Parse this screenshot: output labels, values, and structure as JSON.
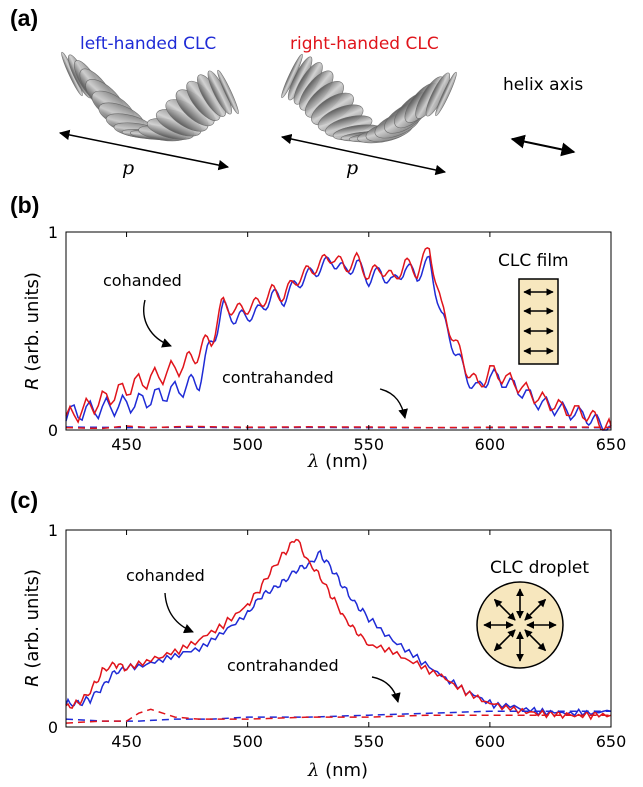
{
  "panel_a": {
    "label": "(a)",
    "left_title": "left-handed CLC",
    "right_title": "right-handed CLC",
    "pitch_left": "p",
    "pitch_right": "p",
    "axis_note": "helix axis"
  },
  "colors": {
    "blue": "#1f2bd6",
    "red": "#e0141b",
    "inset_fill": "#f7e7be"
  },
  "chart_data": [
    {
      "type": "line",
      "panel": "(b)",
      "xlabel_var": "λ",
      "xlabel_unit": " (nm)",
      "ylabel_var": "R",
      "ylabel_unit": " (arb. units)",
      "xlim": [
        425,
        650
      ],
      "ylim": [
        0,
        1
      ],
      "xticks": [
        "450",
        "500",
        "550",
        "600",
        "650"
      ],
      "yticks": [
        "0",
        "1"
      ],
      "annotations": {
        "co": "cohanded",
        "contra": "contrahanded"
      },
      "inset_label": "CLC film",
      "series": [
        {
          "color": "blue",
          "style": "solid",
          "x": [
            425,
            435,
            445,
            455,
            465,
            475,
            480,
            485,
            490,
            495,
            500,
            505,
            510,
            515,
            520,
            525,
            530,
            535,
            540,
            545,
            550,
            555,
            560,
            565,
            570,
            575,
            580,
            585,
            590,
            595,
            600,
            610,
            620,
            630,
            640,
            645,
            650
          ],
          "y": [
            0.08,
            0.1,
            0.12,
            0.14,
            0.18,
            0.22,
            0.25,
            0.44,
            0.62,
            0.56,
            0.58,
            0.6,
            0.68,
            0.66,
            0.74,
            0.78,
            0.82,
            0.86,
            0.8,
            0.84,
            0.76,
            0.8,
            0.74,
            0.82,
            0.78,
            0.85,
            0.58,
            0.42,
            0.28,
            0.2,
            0.28,
            0.22,
            0.14,
            0.1,
            0.07,
            0.03,
            0.02
          ]
        },
        {
          "color": "red",
          "style": "solid",
          "x": [
            425,
            435,
            445,
            455,
            465,
            475,
            480,
            485,
            490,
            495,
            500,
            505,
            510,
            515,
            520,
            525,
            530,
            535,
            540,
            545,
            550,
            555,
            560,
            565,
            570,
            575,
            580,
            585,
            590,
            595,
            600,
            610,
            620,
            630,
            640,
            645,
            650
          ],
          "y": [
            0.06,
            0.12,
            0.18,
            0.24,
            0.28,
            0.34,
            0.4,
            0.46,
            0.64,
            0.6,
            0.62,
            0.64,
            0.7,
            0.68,
            0.76,
            0.8,
            0.84,
            0.88,
            0.82,
            0.86,
            0.78,
            0.82,
            0.76,
            0.84,
            0.8,
            0.92,
            0.62,
            0.46,
            0.32,
            0.22,
            0.3,
            0.24,
            0.16,
            0.11,
            0.08,
            0.04,
            0.02
          ]
        },
        {
          "color": "blue",
          "style": "dashed",
          "x": [
            425,
            450,
            475,
            500,
            525,
            550,
            575,
            600,
            625,
            650
          ],
          "y": [
            0.015,
            0.012,
            0.014,
            0.012,
            0.013,
            0.012,
            0.011,
            0.012,
            0.013,
            0.012
          ]
        },
        {
          "color": "red",
          "style": "dashed",
          "x": [
            425,
            440,
            450,
            460,
            475,
            500,
            525,
            550,
            575,
            600,
            625,
            650
          ],
          "y": [
            0.012,
            0.008,
            0.02,
            0.012,
            0.018,
            0.014,
            0.016,
            0.015,
            0.012,
            0.014,
            0.016,
            0.013
          ]
        }
      ]
    },
    {
      "type": "line",
      "panel": "(c)",
      "xlabel_var": "λ",
      "xlabel_unit": " (nm)",
      "ylabel_var": "R",
      "ylabel_unit": " (arb. units)",
      "xlim": [
        425,
        650
      ],
      "ylim": [
        0,
        1
      ],
      "xticks": [
        "450",
        "500",
        "550",
        "600",
        "650"
      ],
      "yticks": [
        "0",
        "1"
      ],
      "annotations": {
        "co": "cohanded",
        "contra": "contrahanded"
      },
      "inset_label": "CLC droplet",
      "series": [
        {
          "color": "blue",
          "style": "solid",
          "x": [
            425,
            430,
            435,
            440,
            445,
            450,
            460,
            470,
            480,
            490,
            500,
            505,
            510,
            515,
            520,
            525,
            530,
            535,
            540,
            545,
            550,
            560,
            570,
            580,
            590,
            600,
            610,
            620,
            630,
            640,
            650
          ],
          "y": [
            0.12,
            0.12,
            0.14,
            0.2,
            0.28,
            0.3,
            0.32,
            0.36,
            0.4,
            0.48,
            0.58,
            0.66,
            0.7,
            0.74,
            0.8,
            0.82,
            0.88,
            0.8,
            0.7,
            0.62,
            0.55,
            0.44,
            0.35,
            0.26,
            0.18,
            0.12,
            0.1,
            0.08,
            0.07,
            0.07,
            0.08
          ]
        },
        {
          "color": "red",
          "style": "solid",
          "x": [
            425,
            430,
            435,
            440,
            445,
            450,
            460,
            470,
            480,
            490,
            500,
            505,
            510,
            515,
            520,
            525,
            530,
            535,
            540,
            545,
            550,
            560,
            570,
            580,
            590,
            600,
            610,
            620,
            630,
            640,
            650
          ],
          "y": [
            0.1,
            0.12,
            0.18,
            0.28,
            0.32,
            0.3,
            0.34,
            0.38,
            0.44,
            0.52,
            0.62,
            0.7,
            0.8,
            0.88,
            0.96,
            0.84,
            0.76,
            0.66,
            0.55,
            0.48,
            0.42,
            0.38,
            0.32,
            0.26,
            0.18,
            0.12,
            0.09,
            0.07,
            0.06,
            0.06,
            0.06
          ]
        },
        {
          "color": "blue",
          "style": "dashed",
          "x": [
            425,
            440,
            455,
            470,
            485,
            500,
            525,
            550,
            575,
            600,
            625,
            650
          ],
          "y": [
            0.04,
            0.03,
            0.03,
            0.04,
            0.04,
            0.05,
            0.05,
            0.06,
            0.07,
            0.08,
            0.08,
            0.08
          ]
        },
        {
          "color": "red",
          "style": "dashed",
          "x": [
            425,
            440,
            450,
            455,
            460,
            465,
            470,
            480,
            500,
            525,
            550,
            575,
            600,
            625,
            650
          ],
          "y": [
            0.02,
            0.03,
            0.03,
            0.07,
            0.09,
            0.07,
            0.05,
            0.04,
            0.04,
            0.05,
            0.05,
            0.06,
            0.06,
            0.06,
            0.06
          ]
        }
      ]
    }
  ]
}
